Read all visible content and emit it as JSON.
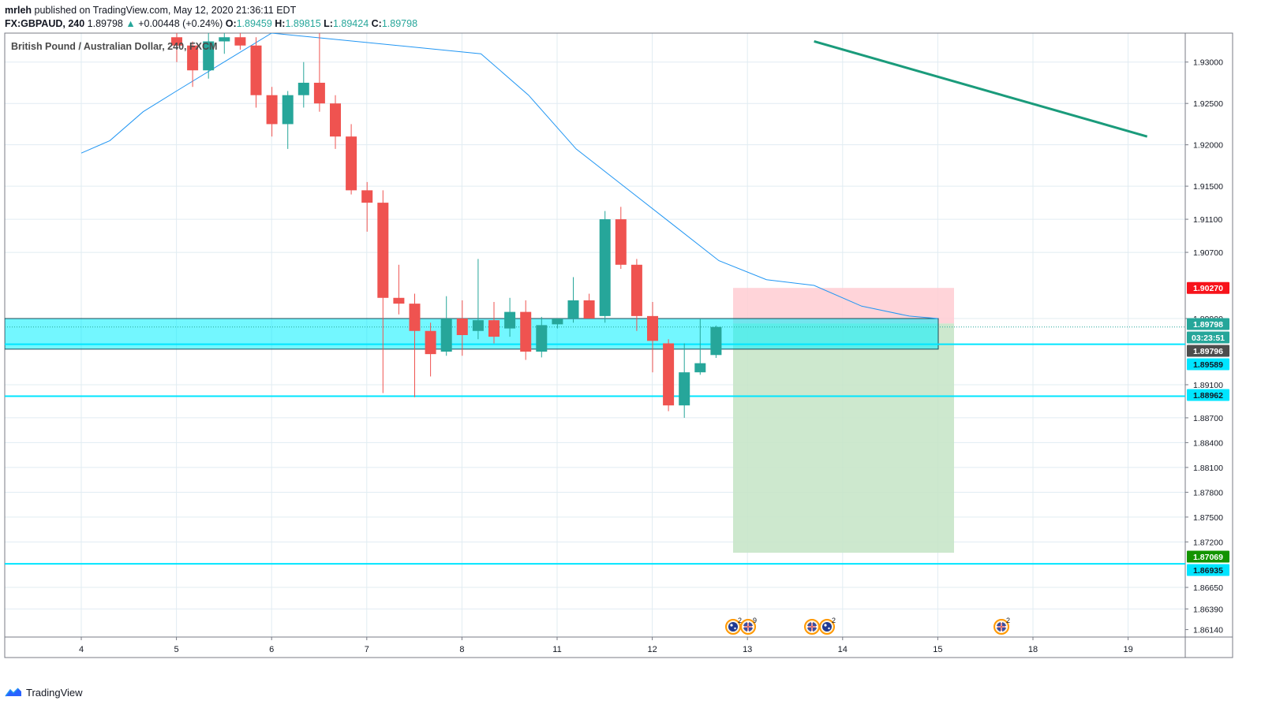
{
  "header": {
    "author": "mrleh",
    "published": "published on TradingView.com, May 12, 2020 21:36:11 EDT"
  },
  "symbol_line": {
    "symbol": "FX:GBPAUD, 240",
    "last": "1.89798",
    "arrow": "▲",
    "change": "+0.00448 (+0.24%)",
    "o_label": "O:",
    "o": "1.89459",
    "h_label": "H:",
    "h": "1.89815",
    "l_label": "L:",
    "l": "1.89424",
    "c_label": "C:",
    "c": "1.89798"
  },
  "footer": {
    "brand": "TradingView",
    "logo_icon": "tradingview-logo-icon"
  },
  "colors": {
    "bull": "#26a69a",
    "bear": "#ef5350",
    "ma": "#2196f3",
    "trendline": "#1a9b7b",
    "zone": "#00f0ff",
    "hline": "#00e5ff",
    "target": "#c8e6c9",
    "stop": "#ffcdd2",
    "grid": "#e1ecf2"
  },
  "chart_data": {
    "type": "candlestick",
    "title": "British Pound / Australian Dollar, 240, FXCM",
    "x_ticks": [
      "4",
      "5",
      "6",
      "7",
      "8",
      "11",
      "12",
      "13",
      "14",
      "15",
      "18",
      "19"
    ],
    "y_ticks": [
      "1.93000",
      "1.92500",
      "1.92000",
      "1.91500",
      "1.91100",
      "1.90700",
      "1.90270",
      "1.89900",
      "1.89798",
      "1.89796",
      "1.89589",
      "1.89100",
      "1.88962",
      "1.88700",
      "1.88400",
      "1.88100",
      "1.87800",
      "1.87500",
      "1.87200",
      "1.87069",
      "1.86935",
      "1.86650",
      "1.86390",
      "1.86140"
    ],
    "ylim": [
      1.8605,
      1.9335
    ],
    "grid": true,
    "candles": [
      {
        "open": 1.933,
        "high": 1.9345,
        "low": 1.93,
        "close": 1.932
      },
      {
        "open": 1.932,
        "high": 1.9325,
        "low": 1.927,
        "close": 1.929
      },
      {
        "open": 1.929,
        "high": 1.934,
        "low": 1.928,
        "close": 1.9325
      },
      {
        "open": 1.9325,
        "high": 1.9345,
        "low": 1.931,
        "close": 1.933
      },
      {
        "open": 1.933,
        "high": 1.9345,
        "low": 1.9315,
        "close": 1.932
      },
      {
        "open": 1.932,
        "high": 1.933,
        "low": 1.9245,
        "close": 1.926
      },
      {
        "open": 1.926,
        "high": 1.927,
        "low": 1.921,
        "close": 1.9225
      },
      {
        "open": 1.9225,
        "high": 1.9265,
        "low": 1.9195,
        "close": 1.926
      },
      {
        "open": 1.926,
        "high": 1.93,
        "low": 1.9245,
        "close": 1.9275
      },
      {
        "open": 1.9275,
        "high": 1.9345,
        "low": 1.924,
        "close": 1.925
      },
      {
        "open": 1.925,
        "high": 1.926,
        "low": 1.9195,
        "close": 1.921
      },
      {
        "open": 1.921,
        "high": 1.9225,
        "low": 1.914,
        "close": 1.9145
      },
      {
        "open": 1.9145,
        "high": 1.9155,
        "low": 1.9095,
        "close": 1.913
      },
      {
        "open": 1.913,
        "high": 1.9145,
        "low": 1.89,
        "close": 1.9015
      },
      {
        "open": 1.9015,
        "high": 1.9055,
        "low": 1.8995,
        "close": 1.9008
      },
      {
        "open": 1.9008,
        "high": 1.902,
        "low": 1.8895,
        "close": 1.8975
      },
      {
        "open": 1.8975,
        "high": 1.8985,
        "low": 1.892,
        "close": 1.8947
      },
      {
        "open": 1.895,
        "high": 1.9017,
        "low": 1.8945,
        "close": 1.899
      },
      {
        "open": 1.899,
        "high": 1.9012,
        "low": 1.8945,
        "close": 1.897
      },
      {
        "open": 1.8975,
        "high": 1.9062,
        "low": 1.8965,
        "close": 1.8988
      },
      {
        "open": 1.8988,
        "high": 1.901,
        "low": 1.896,
        "close": 1.8968
      },
      {
        "open": 1.8978,
        "high": 1.9015,
        "low": 1.8968,
        "close": 1.8998
      },
      {
        "open": 1.8998,
        "high": 1.9012,
        "low": 1.894,
        "close": 1.895
      },
      {
        "open": 1.895,
        "high": 1.8992,
        "low": 1.8943,
        "close": 1.8982
      },
      {
        "open": 1.8983,
        "high": 1.899,
        "low": 1.8978,
        "close": 1.899
      },
      {
        "open": 1.899,
        "high": 1.904,
        "low": 1.8985,
        "close": 1.9012
      },
      {
        "open": 1.9012,
        "high": 1.902,
        "low": 1.899,
        "close": 1.899
      },
      {
        "open": 1.8993,
        "high": 1.912,
        "low": 1.8985,
        "close": 1.911
      },
      {
        "open": 1.911,
        "high": 1.9125,
        "low": 1.905,
        "close": 1.9055
      },
      {
        "open": 1.9055,
        "high": 1.9062,
        "low": 1.8975,
        "close": 1.8993
      },
      {
        "open": 1.8993,
        "high": 1.901,
        "low": 1.8925,
        "close": 1.8963
      },
      {
        "open": 1.896,
        "high": 1.8965,
        "low": 1.8878,
        "close": 1.8885
      },
      {
        "open": 1.8885,
        "high": 1.896,
        "low": 1.887,
        "close": 1.8925
      },
      {
        "open": 1.8925,
        "high": 1.899,
        "low": 1.8922,
        "close": 1.8936
      },
      {
        "open": 1.89459,
        "high": 1.89815,
        "low": 1.89424,
        "close": 1.89798
      }
    ],
    "moving_average": [
      [
        3.0,
        1.919
      ],
      [
        3.3,
        1.9205
      ],
      [
        3.65,
        1.924
      ],
      [
        4.0,
        1.9265
      ],
      [
        4.5,
        1.93
      ],
      [
        5.0,
        1.9335
      ],
      [
        7.2,
        1.931
      ],
      [
        7.7,
        1.926
      ],
      [
        8.2,
        1.9195
      ],
      [
        8.7,
        1.915
      ],
      [
        9.2,
        1.9105
      ],
      [
        9.7,
        1.906
      ],
      [
        10.2,
        1.9037
      ],
      [
        10.7,
        1.903
      ],
      [
        11.2,
        1.9005
      ],
      [
        11.7,
        1.8993
      ],
      [
        12.0,
        1.899
      ]
    ],
    "trendline": {
      "from": [
        7.7,
        1.9325
      ],
      "to": [
        11.2,
        1.921
      ]
    },
    "zone": {
      "top": 1.899,
      "bottom": 1.8953
    },
    "horizontal_lines": [
      1.89589,
      1.88962,
      1.86935
    ],
    "last_price": 1.89798,
    "position": {
      "entry": 1.8984,
      "stop": 1.9027,
      "target": 1.87069
    },
    "price_labels": [
      {
        "price": 1.9027,
        "text": "1.90270",
        "bg": "#f7131b",
        "fg": "#ffffff"
      },
      {
        "price": 1.89798,
        "text": "1.89798",
        "bg": "#26a69a",
        "fg": "#ffffff"
      },
      {
        "price": 1.89589,
        "text": "03:23:51",
        "bg": "#26a69a",
        "fg": "#ffffff"
      },
      {
        "price": 1.893,
        "text": "1.89796",
        "bg": "#4d4d4d",
        "fg": "#ffffff"
      },
      {
        "price": 1.89589,
        "text": "1.89589",
        "bg": "#00e5ff",
        "fg": "#131722"
      },
      {
        "price": 1.88962,
        "text": "1.88962",
        "bg": "#00e5ff",
        "fg": "#131722"
      },
      {
        "price": 1.87069,
        "text": "1.87069",
        "bg": "#139400",
        "fg": "#ffffff"
      },
      {
        "price": 1.86935,
        "text": "1.86935",
        "bg": "#00e5ff",
        "fg": "#131722"
      }
    ],
    "events": [
      {
        "count": "2",
        "flags": [
          "au-flag-icon",
          "au-flag-icon"
        ]
      },
      {
        "count": "9",
        "flags": [
          "gb-flag-icon"
        ]
      },
      {
        "count": "",
        "flags": [
          "gb-flag-icon"
        ]
      },
      {
        "count": "2",
        "flags": [
          "au-flag-icon"
        ]
      },
      {
        "count": "2",
        "flags": [
          "gb-flag-icon"
        ]
      }
    ]
  }
}
